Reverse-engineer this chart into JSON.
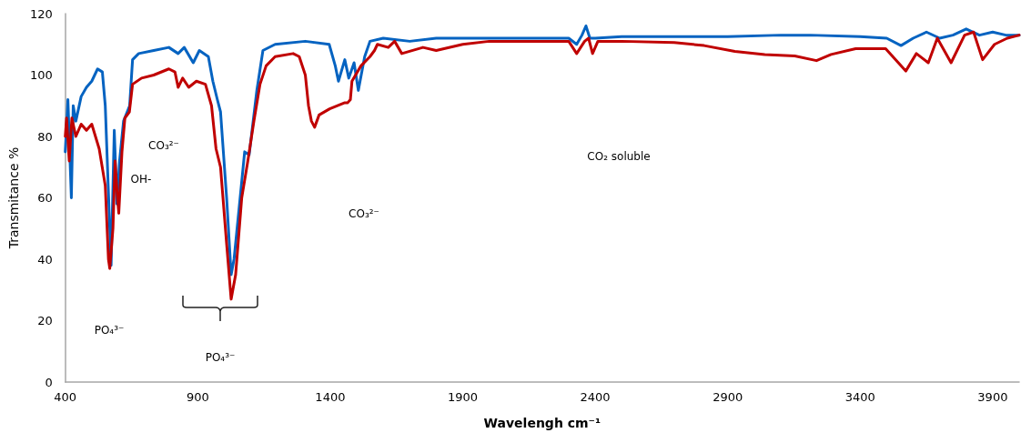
{
  "chart_data": {
    "type": "line",
    "xlabel": "Wavelengh cm⁻¹",
    "ylabel": "Transmitance %",
    "xlim": [
      400,
      4000
    ],
    "xticks": [
      400,
      900,
      1400,
      1900,
      2400,
      2900,
      3400,
      3900
    ],
    "ylim": [
      0,
      120
    ],
    "yticks": [
      0,
      20,
      40,
      60,
      80,
      100,
      120
    ],
    "grid": false,
    "marker": "none",
    "line_style": "solid",
    "series": [
      {
        "color": "#0563c1",
        "x": [
          400,
          410,
          423,
          430,
          440,
          460,
          480,
          500,
          522,
          540,
          551,
          573,
          585,
          595,
          605,
          620,
          643,
          654,
          677,
          734,
          791,
          826,
          849,
          883,
          906,
          940,
          957,
          974,
          986,
          1009,
          1026,
          1037,
          1060,
          1077,
          1094,
          1123,
          1146,
          1192,
          1306,
          1396,
          1419,
          1431,
          1455,
          1470,
          1490,
          1506,
          1530,
          1550,
          1600,
          1700,
          1800,
          1900,
          2000,
          2100,
          2200,
          2300,
          2330,
          2350,
          2365,
          2380,
          2400,
          2500,
          2700,
          2900,
          3100,
          3212,
          3400,
          3500,
          3554,
          3600,
          3650,
          3700,
          3750,
          3800,
          3850,
          3900,
          3950,
          4000
        ],
        "values": [
          75,
          92,
          60,
          90,
          85,
          93,
          96,
          98,
          102,
          101,
          90,
          38,
          82,
          58,
          72,
          85,
          90,
          105,
          107,
          108,
          109,
          107,
          109,
          104,
          108,
          106,
          98,
          92,
          88,
          60,
          35,
          40,
          60,
          75,
          74,
          95,
          108,
          110,
          111,
          110,
          103,
          98,
          105,
          99,
          104,
          95,
          106,
          111,
          112,
          111,
          112,
          112,
          112,
          112,
          112,
          112,
          110,
          113,
          116,
          112,
          112,
          112.5,
          112.5,
          112.5,
          113,
          113,
          112.5,
          112,
          109.6,
          112,
          114,
          112,
          113,
          115,
          113,
          114,
          113,
          113
        ]
      },
      {
        "color": "#c00000",
        "x": [
          400,
          405,
          415,
          425,
          440,
          460,
          480,
          500,
          528,
          551,
          563,
          568,
          580,
          588,
          597,
          602,
          614,
          625,
          642,
          654,
          688,
          734,
          791,
          814,
          826,
          843,
          866,
          895,
          929,
          952,
          969,
          986,
          1009,
          1026,
          1043,
          1066,
          1089,
          1112,
          1135,
          1158,
          1192,
          1260,
          1283,
          1306,
          1318,
          1329,
          1341,
          1358,
          1398,
          1455,
          1466,
          1476,
          1482,
          1516,
          1550,
          1567,
          1578,
          1619,
          1643,
          1670,
          1750,
          1800,
          1900,
          2000,
          2100,
          2300,
          2330,
          2360,
          2375,
          2390,
          2410,
          2500,
          2698,
          2811,
          2927,
          3040,
          3153,
          3235,
          3290,
          3383,
          3496,
          3572,
          3612,
          3657,
          3691,
          3743,
          3794,
          3828,
          3862,
          3907,
          3955,
          4000
        ],
        "values": [
          80,
          86,
          72,
          86,
          80,
          84,
          82,
          84,
          76,
          64,
          40,
          37,
          50,
          72,
          60,
          55,
          75,
          86,
          88,
          97,
          99,
          100,
          102,
          101,
          96,
          99,
          96,
          98,
          97,
          90,
          76,
          70,
          45,
          27,
          35,
          60,
          72,
          85,
          97,
          103,
          106,
          107,
          106,
          100,
          90,
          85,
          83,
          87,
          89,
          91,
          91,
          92,
          98,
          103,
          106,
          108,
          110,
          109,
          111,
          107,
          109,
          108,
          110,
          111,
          111,
          111,
          107,
          111,
          112,
          107,
          111,
          111,
          110.6,
          109.6,
          107.7,
          106.7,
          106.2,
          104.7,
          106.7,
          108.6,
          108.6,
          101.3,
          107,
          104,
          112,
          104,
          113,
          114,
          105,
          110,
          112,
          113
        ]
      }
    ],
    "annotations": [
      "CO₃²⁻",
      "OH-",
      "PO₄³⁻",
      "PO₄³⁻",
      "CO₃²⁻",
      "CO₂ soluble"
    ]
  }
}
